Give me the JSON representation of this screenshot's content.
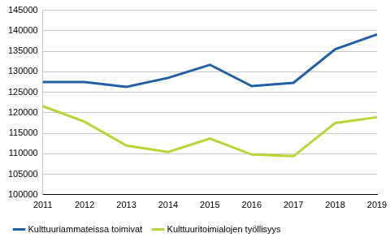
{
  "chart_data": {
    "type": "line",
    "categories": [
      "2011",
      "2012",
      "2013",
      "2014",
      "2015",
      "2016",
      "2017",
      "2018",
      "2019"
    ],
    "series": [
      {
        "name": "Kulttuuriammateissa toimivat",
        "color": "#1f5fa6",
        "values": [
          127500,
          127500,
          126300,
          128500,
          131700,
          126500,
          127300,
          135500,
          139100
        ]
      },
      {
        "name": "Kulttuuritoimialojen työllisyys",
        "color": "#b8d433",
        "values": [
          121600,
          117800,
          112000,
          110400,
          113700,
          109800,
          109400,
          117500,
          118900
        ]
      }
    ],
    "ylim": [
      100000,
      145000
    ],
    "yticks": [
      100000,
      105000,
      110000,
      115000,
      120000,
      125000,
      130000,
      135000,
      140000,
      145000
    ],
    "grid": true,
    "legend": "bottom"
  }
}
